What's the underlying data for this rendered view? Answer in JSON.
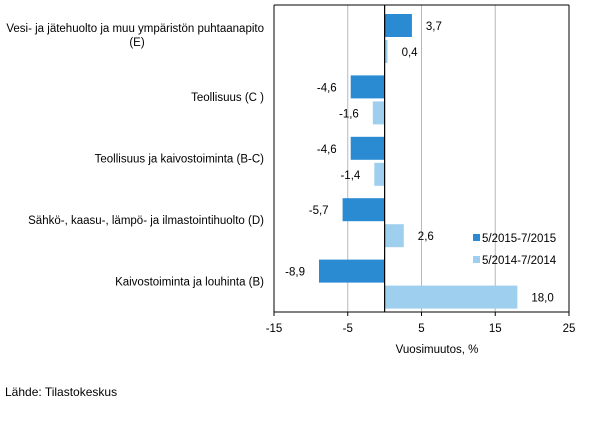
{
  "chart_data": {
    "type": "bar",
    "orientation": "horizontal",
    "categories": [
      "Vesi- ja jätehuolto ja muu ympäristön puhtaanapito (E)",
      "Teollisuus (C )",
      "Teollisuus ja kaivostoiminta (B-C)",
      "Sähkö-, kaasu-, lämpö- ja ilmastointihuolto (D)",
      "Kaivostoiminta ja louhinta (B)"
    ],
    "category_lines": [
      [
        "Vesi- ja jätehuolto ja muu ympäristön puhtaanapito",
        "(E)"
      ],
      [
        "Teollisuus (C )"
      ],
      [
        "Teollisuus ja kaivostoiminta (B-C)"
      ],
      [
        "Sähkö-, kaasu-, lämpö- ja ilmastointihuolto (D)"
      ],
      [
        "Kaivostoiminta ja louhinta (B)"
      ]
    ],
    "series": [
      {
        "name": "5/2015-7/2015",
        "color": "#2a8bd2",
        "values": [
          3.7,
          -4.6,
          -4.6,
          -5.7,
          -8.9
        ],
        "labels": [
          "3,7",
          "-4,6",
          "-4,6",
          "-5,7",
          "-8,9"
        ]
      },
      {
        "name": "5/2014-7/2014",
        "color": "#9fcfee",
        "values": [
          0.4,
          -1.6,
          -1.4,
          2.6,
          18.0
        ],
        "labels": [
          "0,4",
          "-1,6",
          "-1,4",
          "2,6",
          "18,0"
        ]
      }
    ],
    "xlabel": "Vuosimuutos, %",
    "xlim": [
      -15,
      25
    ],
    "xticks": [
      -15,
      -5,
      5,
      15,
      25
    ],
    "xtick_labels": [
      "-15",
      "-5",
      "5",
      "15",
      "25"
    ],
    "grid": "vertical",
    "legend_position": "right-inside"
  },
  "source": "Lähde: Tilastokeskus"
}
